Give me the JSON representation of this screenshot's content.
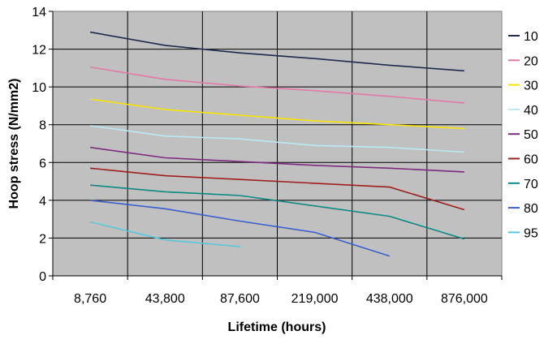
{
  "chart_data": {
    "type": "line",
    "xlabel": "Lifetime (hours)",
    "ylabel": "Hoop stress (N/mm2)",
    "categories": [
      "8,760",
      "43,800",
      "87,600",
      "219,000",
      "438,000",
      "876,000"
    ],
    "ylim": [
      0,
      14
    ],
    "yticks": [
      "0",
      "2",
      "4",
      "6",
      "8",
      "10",
      "12",
      "14"
    ],
    "grid": true,
    "legend_position": "right",
    "plot_background": "#c0c0c0",
    "series": [
      {
        "name": "10",
        "color": "#1f2a4d",
        "values": [
          12.9,
          12.2,
          11.8,
          11.5,
          11.15,
          10.85
        ]
      },
      {
        "name": "20",
        "color": "#e27aa8",
        "values": [
          11.05,
          10.4,
          10.05,
          9.8,
          9.5,
          9.15
        ]
      },
      {
        "name": "30",
        "color": "#f5e400",
        "values": [
          9.35,
          8.8,
          8.5,
          8.2,
          8.0,
          7.8
        ]
      },
      {
        "name": "40",
        "color": "#b9e9f2",
        "values": [
          7.95,
          7.4,
          7.25,
          6.9,
          6.8,
          6.55
        ]
      },
      {
        "name": "50",
        "color": "#7e2a7e",
        "values": [
          6.8,
          6.25,
          6.05,
          5.85,
          5.7,
          5.5
        ]
      },
      {
        "name": "60",
        "color": "#9e1f1f",
        "values": [
          5.7,
          5.3,
          5.1,
          4.9,
          4.7,
          3.5
        ]
      },
      {
        "name": "70",
        "color": "#0a8a80",
        "values": [
          4.8,
          4.45,
          4.25,
          3.7,
          3.15,
          1.95
        ]
      },
      {
        "name": "80",
        "color": "#3a5fcd",
        "values": [
          4.0,
          3.55,
          2.9,
          2.3,
          1.05,
          null
        ]
      },
      {
        "name": "95",
        "color": "#56c8d8",
        "values": [
          2.85,
          1.9,
          1.55,
          null,
          null,
          null
        ]
      }
    ]
  }
}
